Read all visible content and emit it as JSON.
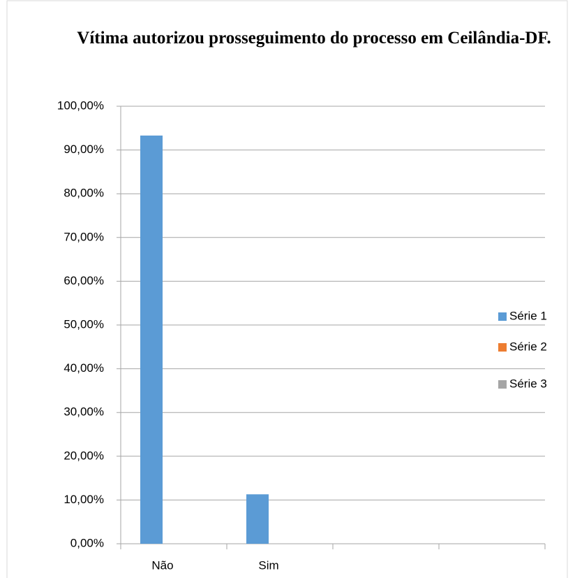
{
  "chart_data": {
    "type": "bar",
    "title": "Vítima autorizou prosseguimento do processo em Ceilândia-DF.",
    "categories": [
      "Não",
      "Sim",
      null,
      null
    ],
    "series": [
      {
        "name": "Série 1",
        "color": "#5b9bd5",
        "values": [
          93.3,
          11.3,
          null,
          null
        ]
      },
      {
        "name": "Série 2",
        "color": "#ed7d31",
        "values": [
          null,
          null,
          null,
          null
        ]
      },
      {
        "name": "Série 3",
        "color": "#a5a5a5",
        "values": [
          null,
          null,
          null,
          null
        ]
      }
    ],
    "ylim": [
      0,
      100
    ],
    "yticks": [
      {
        "value": 0,
        "label": "0,00%"
      },
      {
        "value": 10,
        "label": "10,00%"
      },
      {
        "value": 20,
        "label": "20,00%"
      },
      {
        "value": 30,
        "label": "30,00%"
      },
      {
        "value": 40,
        "label": "40,00%"
      },
      {
        "value": 50,
        "label": "50,00%"
      },
      {
        "value": 60,
        "label": "60,00%"
      },
      {
        "value": 70,
        "label": "70,00%"
      },
      {
        "value": 80,
        "label": "80,00%"
      },
      {
        "value": 90,
        "label": "90,00%"
      },
      {
        "value": 100,
        "label": "100,00%"
      }
    ],
    "grid": true,
    "legend": "right"
  }
}
